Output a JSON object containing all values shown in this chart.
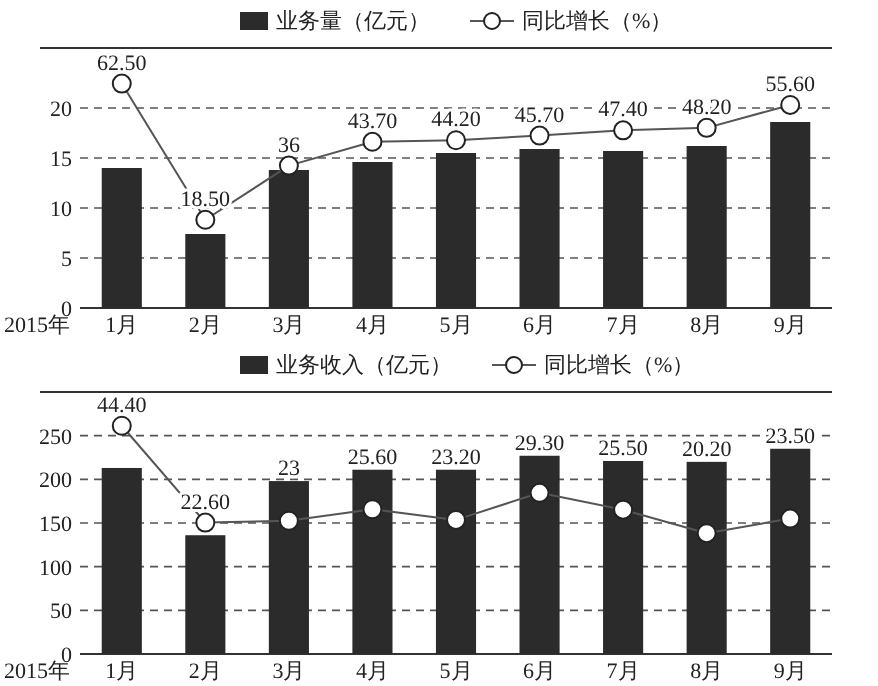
{
  "chart_data": [
    {
      "type": "bar",
      "categories": [
        "1月",
        "2月",
        "3月",
        "4月",
        "5月",
        "6月",
        "7月",
        "8月",
        "9月"
      ],
      "xlabel": "2015年",
      "ylim": [
        0,
        26
      ],
      "yticks": [
        0,
        5,
        10,
        15,
        20
      ],
      "y2lim": [
        -10,
        74
      ],
      "grid": "y",
      "legend": "top",
      "series": [
        {
          "name": "业务量（亿元）",
          "color": "#2b2b2b",
          "values": [
            14,
            7.4,
            13.8,
            14.6,
            15.5,
            15.9,
            15.7,
            16.2,
            18.6
          ]
        },
        {
          "name": "同比增长（%）",
          "type": "line",
          "axis": "y2",
          "marker": "circle",
          "color": "#555555",
          "values": [
            62.5,
            18.5,
            36,
            43.7,
            44.2,
            45.7,
            47.4,
            48.2,
            55.6
          ],
          "value_labels": [
            "62.50",
            "18.50",
            "36",
            "43.70",
            "44.20",
            "45.70",
            "47.40",
            "48.20",
            "55.60"
          ]
        }
      ]
    },
    {
      "type": "bar",
      "categories": [
        "1月",
        "2月",
        "3月",
        "4月",
        "5月",
        "6月",
        "7月",
        "8月",
        "9月"
      ],
      "xlabel": "2015年",
      "ylim": [
        0,
        300
      ],
      "yticks": [
        0,
        50,
        100,
        150,
        200,
        250
      ],
      "y2lim": [
        -7,
        52
      ],
      "grid": "y",
      "legend": "top",
      "series": [
        {
          "name": "业务收入（亿元）",
          "color": "#2b2b2b",
          "values": [
            213,
            136,
            198,
            211,
            211,
            227,
            221,
            220,
            235
          ]
        },
        {
          "name": "同比增长（%）",
          "type": "line",
          "axis": "y2",
          "marker": "circle",
          "color": "#555555",
          "values": [
            44.4,
            22.6,
            23,
            25.6,
            23.2,
            29.3,
            25.5,
            20.2,
            23.5
          ],
          "value_labels": [
            "44.40",
            "22.60",
            "23",
            "25.60",
            "23.20",
            "29.30",
            "25.50",
            "20.20",
            "23.50"
          ]
        }
      ]
    }
  ]
}
